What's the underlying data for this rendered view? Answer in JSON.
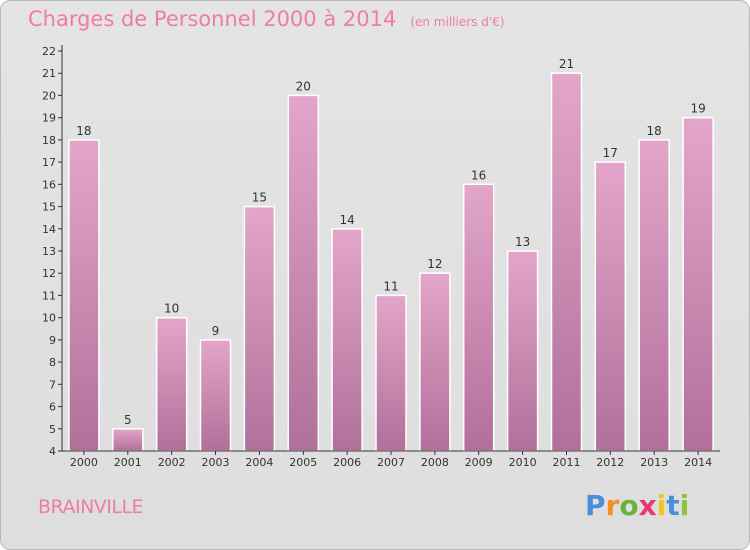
{
  "header": {
    "title": "Charges de Personnel 2000 à 2014",
    "unit": "(en milliers d'€)"
  },
  "footer": {
    "commune": "BRAINVILLE",
    "logo": [
      "P",
      "r",
      "o",
      "x",
      "i",
      "t",
      "i"
    ]
  },
  "colors": {
    "accent": "#f07ca6",
    "bar_top": "#e4a5ca",
    "bar_bottom": "#b0709a",
    "axis": "#333333"
  },
  "chart_data": {
    "type": "bar",
    "categories": [
      "2000",
      "2001",
      "2002",
      "2003",
      "2004",
      "2005",
      "2006",
      "2007",
      "2008",
      "2009",
      "2010",
      "2011",
      "2012",
      "2013",
      "2014"
    ],
    "values": [
      18,
      5,
      10,
      9,
      15,
      20,
      14,
      11,
      12,
      16,
      13,
      21,
      17,
      18,
      19
    ],
    "ylim": [
      4,
      22
    ],
    "yticks": [
      4,
      5,
      6,
      7,
      8,
      9,
      10,
      11,
      12,
      13,
      14,
      15,
      16,
      17,
      18,
      19,
      20,
      21,
      22
    ],
    "grid": false,
    "legend": "none",
    "title": "Charges de Personnel 2000 à 2014",
    "xlabel": "",
    "ylabel": ""
  }
}
